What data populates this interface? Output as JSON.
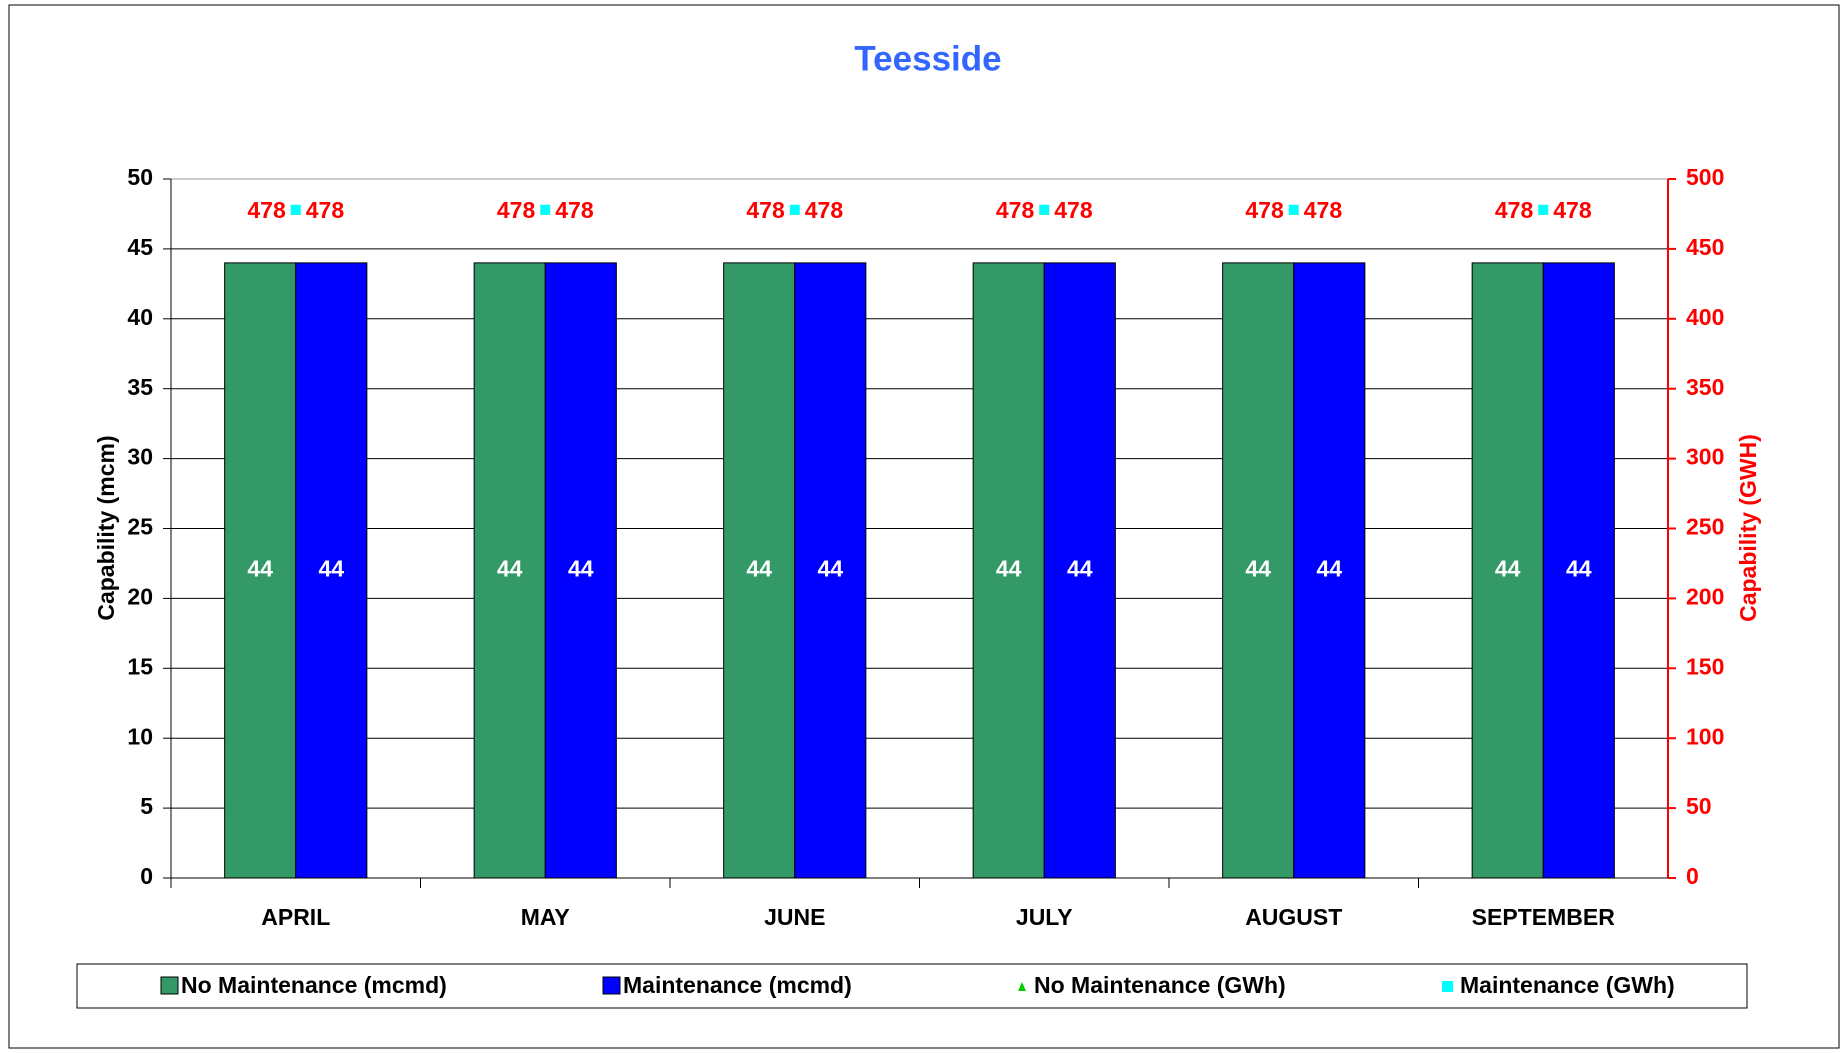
{
  "chart_data": {
    "type": "bar",
    "title": "Teesside",
    "y_label": "Capability (mcm)",
    "y2_label": "Capability (GWH)",
    "categories": [
      "APRIL",
      "MAY",
      "JUNE",
      "JULY",
      "AUGUST",
      "SEPTEMBER"
    ],
    "series": [
      {
        "name": "No Maintenance (mcmd)",
        "color": "#339966",
        "type": "bar",
        "values": [
          44,
          44,
          44,
          44,
          44,
          44
        ]
      },
      {
        "name": "Maintenance (mcmd)",
        "color": "#0000ff",
        "type": "bar",
        "values": [
          44,
          44,
          44,
          44,
          44,
          44
        ]
      },
      {
        "name": "No Maintenance (GWh)",
        "color": "#00cc00",
        "type": "point",
        "marker": "triangle",
        "axis": "y2",
        "values": [
          478,
          478,
          478,
          478,
          478,
          478
        ]
      },
      {
        "name": "Maintenance (GWh)",
        "color": "#00ffff",
        "type": "point",
        "marker": "square",
        "axis": "y2",
        "values": [
          478,
          478,
          478,
          478,
          478,
          478
        ]
      }
    ],
    "ylim": [
      0,
      50
    ],
    "yticks": [
      0,
      5,
      10,
      15,
      20,
      25,
      30,
      35,
      40,
      45,
      50
    ],
    "y2lim": [
      0,
      500
    ],
    "y2ticks": [
      0,
      50,
      100,
      150,
      200,
      250,
      300,
      350,
      400,
      450,
      500
    ],
    "grid": true,
    "legend": "bottom"
  }
}
